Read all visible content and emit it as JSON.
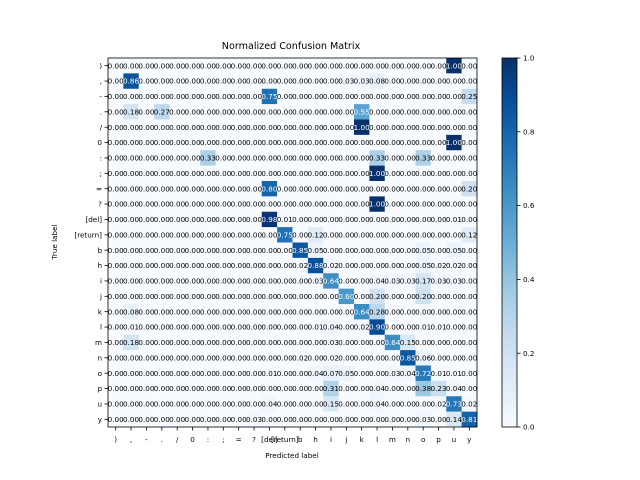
{
  "chart_data": {
    "type": "heatmap",
    "title": "Normalized Confusion Matrix",
    "xlabel": "Predicted label",
    "ylabel": "True label",
    "labels": [
      ")",
      ",",
      "-",
      ".",
      "/",
      "0",
      ":",
      ";",
      "=",
      "?",
      "[del]",
      "[return]",
      "b",
      "h",
      "i",
      "j",
      "k",
      "l",
      "m",
      "n",
      "o",
      "p",
      "u",
      "y"
    ],
    "colorbar_ticks": [
      "0.0",
      "0.2",
      "0.4",
      "0.6",
      "0.8",
      "1.0"
    ],
    "colorbar_range": [
      0,
      1
    ],
    "colormap": "Blues",
    "cells": [
      [
        "0.00",
        "0.00",
        "0.00",
        "0.00",
        "0.00",
        "0.00",
        "0.00",
        "0.00",
        "0.00",
        "0.00",
        "0.00",
        "0.00",
        "0.00",
        "0.00",
        "0.00",
        "0.00",
        "0.00",
        "0.00",
        "0.00",
        "0.00",
        "0.00",
        "0.00",
        "1.00",
        "0.00"
      ],
      [
        "0.00",
        "0.86",
        "0.00",
        "0.00",
        "0.00",
        "0.00",
        "0.00",
        "0.00",
        "0.00",
        "0.00",
        "0.00",
        "0.00",
        "0.00",
        "0.00",
        "0.00",
        "0.03",
        "0.03",
        "0.08",
        "0.00",
        "0.00",
        "0.00",
        "0.00",
        "0.00",
        "0.00"
      ],
      [
        "0.00",
        "0.00",
        "0.00",
        "0.00",
        "0.00",
        "0.00",
        "0.00",
        "0.00",
        "0.00",
        "0.00",
        "0.75",
        "0.00",
        "0.00",
        "0.00",
        "0.00",
        "0.00",
        "0.00",
        "0.00",
        "0.00",
        "0.00",
        "0.00",
        "0.00",
        "0.00",
        "0.25"
      ],
      [
        "0.00",
        "0.18",
        "0.00",
        "0.27",
        "0.00",
        "0.00",
        "0.00",
        "0.00",
        "0.00",
        "0.00",
        "0.00",
        "0.00",
        "0.00",
        "0.00",
        "0.00",
        "0.00",
        "0.55",
        "0.00",
        "0.00",
        "0.00",
        "0.00",
        "0.00",
        "0.00",
        "0.00"
      ],
      [
        "0.00",
        "0.00",
        "0.00",
        "0.00",
        "0.00",
        "0.00",
        "0.00",
        "0.00",
        "0.00",
        "0.00",
        "0.00",
        "0.00",
        "0.00",
        "0.00",
        "0.00",
        "0.00",
        "1.00",
        "0.00",
        "0.00",
        "0.00",
        "0.00",
        "0.00",
        "0.00",
        "0.00"
      ],
      [
        "0.00",
        "0.00",
        "0.00",
        "0.00",
        "0.00",
        "0.00",
        "0.00",
        "0.00",
        "0.00",
        "0.00",
        "0.00",
        "0.00",
        "0.00",
        "0.00",
        "0.00",
        "0.00",
        "0.00",
        "0.00",
        "0.00",
        "0.00",
        "0.00",
        "0.00",
        "1.00",
        "0.00"
      ],
      [
        "0.00",
        "0.00",
        "0.00",
        "0.00",
        "0.00",
        "0.00",
        "0.33",
        "0.00",
        "0.00",
        "0.00",
        "0.00",
        "0.00",
        "0.00",
        "0.00",
        "0.00",
        "0.00",
        "0.00",
        "0.33",
        "0.00",
        "0.00",
        "0.33",
        "0.00",
        "0.00",
        "0.00"
      ],
      [
        "0.00",
        "0.00",
        "0.00",
        "0.00",
        "0.00",
        "0.00",
        "0.00",
        "0.00",
        "0.00",
        "0.00",
        "0.00",
        "0.00",
        "0.00",
        "0.00",
        "0.00",
        "0.00",
        "0.00",
        "1.00",
        "0.00",
        "0.00",
        "0.00",
        "0.00",
        "0.00",
        "0.00"
      ],
      [
        "0.00",
        "0.00",
        "0.00",
        "0.00",
        "0.00",
        "0.00",
        "0.00",
        "0.00",
        "0.00",
        "0.00",
        "0.80",
        "0.00",
        "0.00",
        "0.00",
        "0.00",
        "0.00",
        "0.00",
        "0.00",
        "0.00",
        "0.00",
        "0.00",
        "0.00",
        "0.00",
        "0.20"
      ],
      [
        "0.00",
        "0.00",
        "0.00",
        "0.00",
        "0.00",
        "0.00",
        "0.00",
        "0.00",
        "0.00",
        "0.00",
        "0.00",
        "0.00",
        "0.00",
        "0.00",
        "0.00",
        "0.00",
        "0.00",
        "1.00",
        "0.00",
        "0.00",
        "0.00",
        "0.00",
        "0.00",
        "0.00"
      ],
      [
        "0.00",
        "0.00",
        "0.00",
        "0.00",
        "0.00",
        "0.00",
        "0.00",
        "0.00",
        "0.00",
        "0.00",
        "0.98",
        "0.01",
        "0.00",
        "0.00",
        "0.00",
        "0.00",
        "0.00",
        "0.00",
        "0.00",
        "0.00",
        "0.00",
        "0.00",
        "0.01",
        "0.00"
      ],
      [
        "0.00",
        "0.00",
        "0.00",
        "0.00",
        "0.00",
        "0.00",
        "0.00",
        "0.00",
        "0.00",
        "0.00",
        "0.00",
        "0.75",
        "0.00",
        "0.12",
        "0.00",
        "0.00",
        "0.00",
        "0.00",
        "0.00",
        "0.00",
        "0.00",
        "0.00",
        "0.00",
        "0.12"
      ],
      [
        "0.00",
        "0.00",
        "0.00",
        "0.00",
        "0.00",
        "0.00",
        "0.00",
        "0.00",
        "0.00",
        "0.00",
        "0.00",
        "0.00",
        "0.85",
        "0.05",
        "0.00",
        "0.00",
        "0.00",
        "0.00",
        "0.00",
        "0.00",
        "0.05",
        "0.00",
        "0.05",
        "0.00"
      ],
      [
        "0.00",
        "0.00",
        "0.00",
        "0.00",
        "0.00",
        "0.00",
        "0.00",
        "0.00",
        "0.00",
        "0.00",
        "0.00",
        "0.00",
        "0.02",
        "0.88",
        "0.02",
        "0.00",
        "0.00",
        "0.00",
        "0.00",
        "0.00",
        "0.05",
        "0.02",
        "0.02",
        "0.00"
      ],
      [
        "0.00",
        "0.00",
        "0.00",
        "0.00",
        "0.00",
        "0.00",
        "0.00",
        "0.00",
        "0.00",
        "0.00",
        "0.00",
        "0.00",
        "0.00",
        "0.03",
        "0.64",
        "0.00",
        "0.00",
        "0.04",
        "0.03",
        "0.03",
        "0.17",
        "0.03",
        "0.03",
        "0.00"
      ],
      [
        "0.00",
        "0.00",
        "0.00",
        "0.00",
        "0.00",
        "0.00",
        "0.00",
        "0.00",
        "0.00",
        "0.00",
        "0.00",
        "0.00",
        "0.00",
        "0.00",
        "0.00",
        "0.60",
        "0.00",
        "0.20",
        "0.00",
        "0.00",
        "0.20",
        "0.00",
        "0.00",
        "0.00"
      ],
      [
        "0.00",
        "0.08",
        "0.00",
        "0.00",
        "0.00",
        "0.00",
        "0.00",
        "0.00",
        "0.00",
        "0.00",
        "0.00",
        "0.00",
        "0.00",
        "0.00",
        "0.00",
        "0.00",
        "0.64",
        "0.28",
        "0.00",
        "0.00",
        "0.00",
        "0.00",
        "0.00",
        "0.00"
      ],
      [
        "0.00",
        "0.01",
        "0.00",
        "0.00",
        "0.00",
        "0.00",
        "0.00",
        "0.00",
        "0.00",
        "0.00",
        "0.00",
        "0.00",
        "0.00",
        "0.01",
        "0.04",
        "0.00",
        "0.02",
        "0.90",
        "0.00",
        "0.00",
        "0.01",
        "0.01",
        "0.00",
        "0.00"
      ],
      [
        "0.00",
        "0.18",
        "0.00",
        "0.00",
        "0.00",
        "0.00",
        "0.00",
        "0.00",
        "0.00",
        "0.00",
        "0.00",
        "0.00",
        "0.00",
        "0.00",
        "0.03",
        "0.00",
        "0.00",
        "0.00",
        "0.64",
        "0.15",
        "0.00",
        "0.00",
        "0.00",
        "0.00"
      ],
      [
        "0.00",
        "0.00",
        "0.00",
        "0.00",
        "0.00",
        "0.00",
        "0.00",
        "0.00",
        "0.00",
        "0.00",
        "0.00",
        "0.00",
        "0.02",
        "0.00",
        "0.02",
        "0.00",
        "0.00",
        "0.00",
        "0.00",
        "0.85",
        "0.06",
        "0.00",
        "0.00",
        "0.00"
      ],
      [
        "0.00",
        "0.00",
        "0.00",
        "0.00",
        "0.00",
        "0.00",
        "0.00",
        "0.00",
        "0.00",
        "0.00",
        "0.01",
        "0.00",
        "0.00",
        "0.04",
        "0.07",
        "0.05",
        "0.00",
        "0.00",
        "0.03",
        "0.04",
        "0.72",
        "0.01",
        "0.01",
        "0.00"
      ],
      [
        "0.00",
        "0.00",
        "0.00",
        "0.00",
        "0.00",
        "0.00",
        "0.00",
        "0.00",
        "0.00",
        "0.00",
        "0.00",
        "0.00",
        "0.00",
        "0.00",
        "0.31",
        "0.00",
        "0.00",
        "0.04",
        "0.00",
        "0.00",
        "0.38",
        "0.23",
        "0.04",
        "0.00"
      ],
      [
        "0.00",
        "0.00",
        "0.00",
        "0.00",
        "0.00",
        "0.00",
        "0.00",
        "0.00",
        "0.00",
        "0.00",
        "0.04",
        "0.00",
        "0.00",
        "0.00",
        "0.15",
        "0.00",
        "0.00",
        "0.04",
        "0.00",
        "0.00",
        "0.00",
        "0.02",
        "0.73",
        "0.02"
      ],
      [
        "0.00",
        "0.00",
        "0.00",
        "0.00",
        "0.00",
        "0.00",
        "0.00",
        "0.00",
        "0.00",
        "0.03",
        "0.00",
        "0.00",
        "0.00",
        "0.00",
        "0.00",
        "0.00",
        "0.00",
        "0.00",
        "0.00",
        "0.00",
        "0.03",
        "0.00",
        "0.14",
        "0.81"
      ]
    ]
  }
}
